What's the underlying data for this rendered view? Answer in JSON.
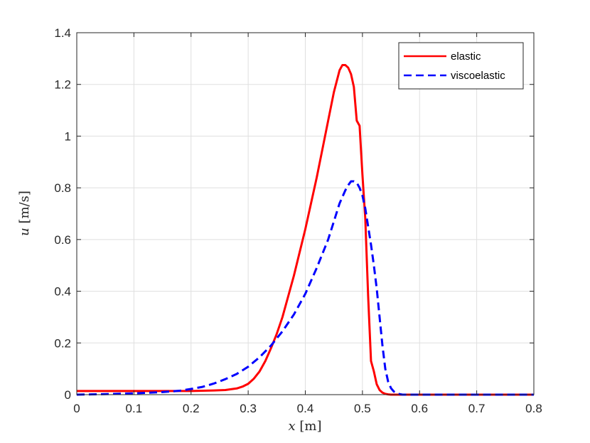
{
  "chart_data": {
    "type": "line",
    "title": "",
    "xlabel": {
      "var": "x",
      "unit": "[m]"
    },
    "ylabel": {
      "var": "u",
      "unit": "[m/s]"
    },
    "xlim": [
      0,
      0.8
    ],
    "ylim": [
      0,
      1.4
    ],
    "xticks": [
      0,
      0.1,
      0.2,
      0.3,
      0.4,
      0.5,
      0.6,
      0.7,
      0.8
    ],
    "yticks": [
      0,
      0.2,
      0.4,
      0.6,
      0.8,
      1,
      1.2,
      1.4
    ],
    "xtick_labels": [
      "0",
      "0.1",
      "0.2",
      "0.3",
      "0.4",
      "0.5",
      "0.6",
      "0.7",
      "0.8"
    ],
    "ytick_labels": [
      "0",
      "0.2",
      "0.4",
      "0.6",
      "0.8",
      "1",
      "1.2",
      "1.4"
    ],
    "grid": true,
    "legend_position": "top-right",
    "series": [
      {
        "name": "elastic",
        "color": "#ff0000",
        "style": "solid",
        "x": [
          0,
          0.05,
          0.1,
          0.15,
          0.2,
          0.24,
          0.26,
          0.28,
          0.29,
          0.3,
          0.31,
          0.32,
          0.33,
          0.34,
          0.35,
          0.36,
          0.37,
          0.38,
          0.39,
          0.4,
          0.41,
          0.42,
          0.43,
          0.44,
          0.45,
          0.46,
          0.465,
          0.47,
          0.475,
          0.48,
          0.485,
          0.49,
          0.495,
          0.5,
          0.505,
          0.51,
          0.515,
          0.52,
          0.525,
          0.53,
          0.535,
          0.54,
          0.545,
          0.55,
          0.56,
          0.6,
          0.7,
          0.8
        ],
        "y": [
          0.014,
          0.014,
          0.014,
          0.014,
          0.014,
          0.016,
          0.018,
          0.024,
          0.031,
          0.042,
          0.062,
          0.09,
          0.13,
          0.18,
          0.235,
          0.3,
          0.38,
          0.46,
          0.55,
          0.64,
          0.74,
          0.84,
          0.95,
          1.06,
          1.17,
          1.255,
          1.275,
          1.275,
          1.265,
          1.24,
          1.19,
          1.06,
          1.04,
          0.85,
          0.68,
          0.38,
          0.13,
          0.09,
          0.04,
          0.018,
          0.008,
          0.003,
          0.001,
          0.0,
          0.0,
          0.0,
          0.0,
          0.0
        ]
      },
      {
        "name": "viscoelastic",
        "color": "#0000ff",
        "style": "dashed",
        "x": [
          0,
          0.05,
          0.1,
          0.15,
          0.18,
          0.2,
          0.22,
          0.24,
          0.26,
          0.28,
          0.3,
          0.32,
          0.34,
          0.36,
          0.38,
          0.4,
          0.42,
          0.44,
          0.45,
          0.46,
          0.47,
          0.475,
          0.48,
          0.485,
          0.49,
          0.495,
          0.5,
          0.505,
          0.51,
          0.515,
          0.52,
          0.525,
          0.53,
          0.535,
          0.54,
          0.545,
          0.55,
          0.555,
          0.56,
          0.565,
          0.57,
          0.6,
          0.7,
          0.8
        ],
        "y": [
          0.0,
          0.002,
          0.005,
          0.01,
          0.015,
          0.022,
          0.03,
          0.043,
          0.06,
          0.08,
          0.108,
          0.145,
          0.19,
          0.245,
          0.31,
          0.39,
          0.49,
          0.6,
          0.67,
          0.74,
          0.79,
          0.81,
          0.825,
          0.825,
          0.82,
          0.8,
          0.77,
          0.72,
          0.65,
          0.58,
          0.5,
          0.41,
          0.3,
          0.19,
          0.1,
          0.05,
          0.025,
          0.012,
          0.005,
          0.002,
          0.0,
          0.0,
          0.0,
          0.0
        ]
      }
    ]
  }
}
